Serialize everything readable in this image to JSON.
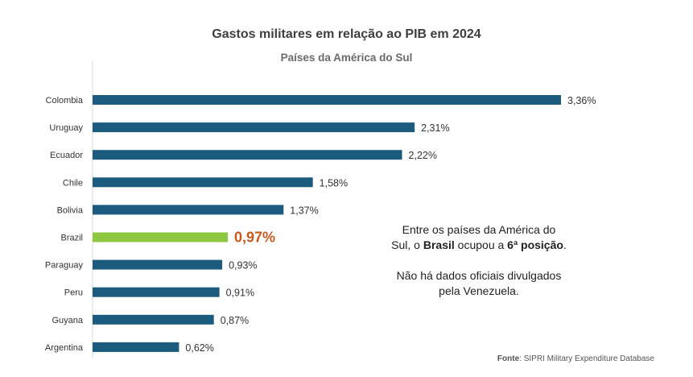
{
  "chart_data": {
    "type": "bar",
    "orientation": "horizontal",
    "title": "Gastos militares em relação ao PIB em 2024",
    "subtitle": "Países da América do Sul",
    "categories": [
      "Colombia",
      "Uruguay",
      "Ecuador",
      "Chile",
      "Bolivia",
      "Brazil",
      "Paraguay",
      "Peru",
      "Guyana",
      "Argentina"
    ],
    "values": [
      3.36,
      2.31,
      2.22,
      1.58,
      1.37,
      0.97,
      0.93,
      0.91,
      0.87,
      0.62
    ],
    "value_labels": [
      "3,36%",
      "2,31%",
      "2,22%",
      "1,58%",
      "1,37%",
      "0,97%",
      "0,93%",
      "0,91%",
      "0,87%",
      "0,62%"
    ],
    "highlight_category": "Brazil",
    "colors": {
      "bar": "#1b5b7e",
      "highlight_bar": "#8dc63f",
      "highlight_label": "#c65a1e"
    },
    "xlim": [
      0,
      3.36
    ],
    "grid": false,
    "legend": "none"
  },
  "annotation": {
    "line1": "Entre os países da América do",
    "line2_pre": "Sul, o ",
    "line2_bold1": "Brasil",
    "line2_mid": " ocupou a ",
    "line2_bold2": "6ª posição",
    "line2_post": ".",
    "line3": "Não há dados oficiais divulgados",
    "line4": "pela Venezuela."
  },
  "source": {
    "label": "Fonte",
    "text": ": SIPRI Military Expenditure Database"
  }
}
